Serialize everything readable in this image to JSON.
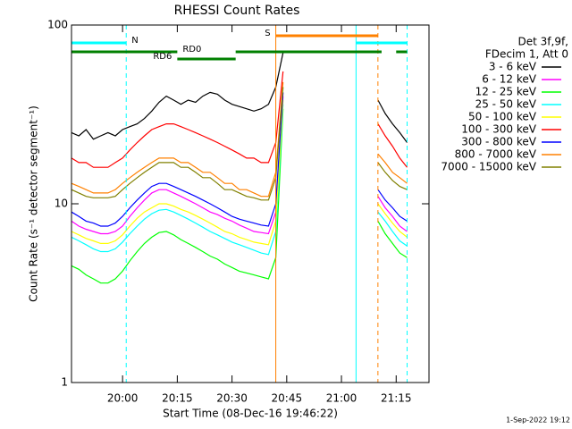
{
  "chart_data": {
    "type": "line",
    "title": "RHESSI Count Rates",
    "x_label": "Start Time (08-Dec-16 19:46:22)",
    "y_label": "Count Rate (s⁻¹ detector segment⁻¹)",
    "legend_title": [
      "Det 3f,9f,",
      "FDecim 1, Att 0"
    ],
    "footer": "1-Sep-2022 19:12",
    "log_y": true,
    "xlim": [
      "19:46",
      "21:24"
    ],
    "xticks": [
      "20:00",
      "20:15",
      "20:30",
      "20:45",
      "21:00",
      "21:15"
    ],
    "ylim": [
      1,
      100
    ],
    "yticks": [
      1,
      10,
      100
    ],
    "x": [
      "19:46",
      "19:48",
      "19:50",
      "19:52",
      "19:54",
      "19:56",
      "19:58",
      "20:00",
      "20:02",
      "20:04",
      "20:06",
      "20:08",
      "20:10",
      "20:12",
      "20:14",
      "20:16",
      "20:18",
      "20:20",
      "20:22",
      "20:24",
      "20:26",
      "20:28",
      "20:30",
      "20:32",
      "20:34",
      "20:36",
      "20:38",
      "20:40",
      "20:42",
      "20:44",
      "20:56",
      "21:10",
      "21:12",
      "21:14",
      "21:16",
      "21:18"
    ],
    "series": [
      {
        "name": "3 - 6 keV",
        "color": "#000000",
        "values": [
          25,
          24,
          26,
          23,
          24,
          25,
          24,
          26,
          27,
          28,
          30,
          33,
          37,
          40,
          38,
          36,
          38,
          37,
          40,
          42,
          41,
          38,
          36,
          35,
          34,
          33,
          34,
          36,
          45,
          70,
          null,
          38,
          32,
          28,
          25,
          22
        ]
      },
      {
        "name": "6 - 12 keV",
        "color": "#ff00ff",
        "values": [
          8,
          7.5,
          7.2,
          7,
          6.8,
          6.8,
          7,
          7.5,
          8.5,
          9.5,
          10.5,
          11.5,
          12,
          12,
          11.5,
          11,
          10.5,
          10,
          9.5,
          9,
          8.7,
          8.3,
          8,
          7.6,
          7.3,
          7,
          6.9,
          6.8,
          9,
          40,
          null,
          11,
          9.5,
          8.5,
          7.5,
          7
        ]
      },
      {
        "name": "12 - 25 keV",
        "color": "#00ff00",
        "values": [
          4.5,
          4.3,
          4,
          3.8,
          3.6,
          3.6,
          3.8,
          4.2,
          4.8,
          5.4,
          6,
          6.5,
          6.9,
          7,
          6.7,
          6.3,
          6,
          5.7,
          5.4,
          5.1,
          4.9,
          4.6,
          4.4,
          4.2,
          4.1,
          4,
          3.9,
          3.8,
          5,
          34,
          null,
          8,
          6.8,
          6,
          5.3,
          5
        ]
      },
      {
        "name": "25 - 50 keV",
        "color": "#00ffff",
        "values": [
          6.5,
          6.2,
          5.9,
          5.6,
          5.4,
          5.4,
          5.6,
          6.1,
          6.8,
          7.5,
          8.2,
          8.8,
          9.2,
          9.3,
          9,
          8.6,
          8.2,
          7.8,
          7.4,
          7,
          6.7,
          6.4,
          6.1,
          5.9,
          5.7,
          5.5,
          5.3,
          5.2,
          7,
          36,
          null,
          9,
          8,
          7,
          6.2,
          5.8
        ]
      },
      {
        "name": "50 - 100 keV",
        "color": "#ffff00",
        "values": [
          7,
          6.7,
          6.4,
          6.2,
          6,
          6,
          6.2,
          6.7,
          7.5,
          8.3,
          9,
          9.5,
          10,
          10,
          9.7,
          9.3,
          9,
          8.6,
          8.2,
          7.8,
          7.4,
          7,
          6.8,
          6.5,
          6.3,
          6.1,
          6,
          5.9,
          8,
          38,
          null,
          10,
          8.8,
          7.8,
          7,
          6.5
        ]
      },
      {
        "name": "100 - 300 keV",
        "color": "#ff0000",
        "values": [
          18,
          17,
          17,
          16,
          16,
          16,
          17,
          18,
          20,
          22,
          24,
          26,
          27,
          28,
          28,
          27,
          26,
          25,
          24,
          23,
          22,
          21,
          20,
          19,
          18,
          18,
          17,
          17,
          22,
          55,
          null,
          28,
          24,
          21,
          18,
          16
        ]
      },
      {
        "name": "300 - 800 keV",
        "color": "#0000ff",
        "values": [
          9,
          8.5,
          8,
          7.8,
          7.5,
          7.5,
          7.8,
          8.5,
          9.5,
          10.5,
          11.5,
          12.5,
          13,
          13,
          12.5,
          12,
          11.5,
          11,
          10.5,
          10,
          9.5,
          9,
          8.5,
          8.2,
          8,
          7.8,
          7.6,
          7.5,
          10,
          42,
          null,
          12,
          10.5,
          9.5,
          8.5,
          8
        ]
      },
      {
        "name": "800 - 7000 keV",
        "color": "#ff8000",
        "values": [
          13,
          12.5,
          12,
          11.5,
          11.5,
          11.5,
          12,
          13,
          14,
          15,
          16,
          17,
          18,
          18,
          18,
          17,
          17,
          16,
          15,
          15,
          14,
          13,
          13,
          12,
          12,
          11.5,
          11,
          11,
          15,
          48,
          null,
          19,
          17,
          15,
          14,
          13
        ]
      },
      {
        "name": "7000 - 15000 keV",
        "color": "#808000",
        "values": [
          12,
          11.5,
          11,
          10.8,
          10.8,
          10.8,
          11,
          12,
          13,
          14,
          15,
          16,
          17,
          17,
          17,
          16,
          16,
          15,
          14,
          14,
          13,
          12,
          12,
          11.5,
          11,
          10.8,
          10.5,
          10.5,
          14,
          45,
          null,
          17,
          15,
          13.5,
          12.5,
          12
        ]
      }
    ],
    "night": {
      "color": "#00ffff",
      "intervals": [
        {
          "label": "N",
          "start": "19:46",
          "end": "20:01"
        },
        {
          "label": null,
          "start": "21:04",
          "end": "21:18"
        }
      ]
    },
    "saa": {
      "color": "#ff8000",
      "intervals": [
        {
          "label": "S",
          "start": "20:42",
          "end": "21:10"
        }
      ]
    },
    "decimation": {
      "color": "#008000",
      "intervals": [
        {
          "label": "RD0",
          "start": "19:46",
          "end": "20:15"
        },
        {
          "label": null,
          "start": "20:31",
          "end": "21:11"
        },
        {
          "label": null,
          "start": "21:15",
          "end": "21:18"
        },
        {
          "label": "RD6",
          "start": "20:15",
          "end": "20:31"
        }
      ]
    }
  }
}
